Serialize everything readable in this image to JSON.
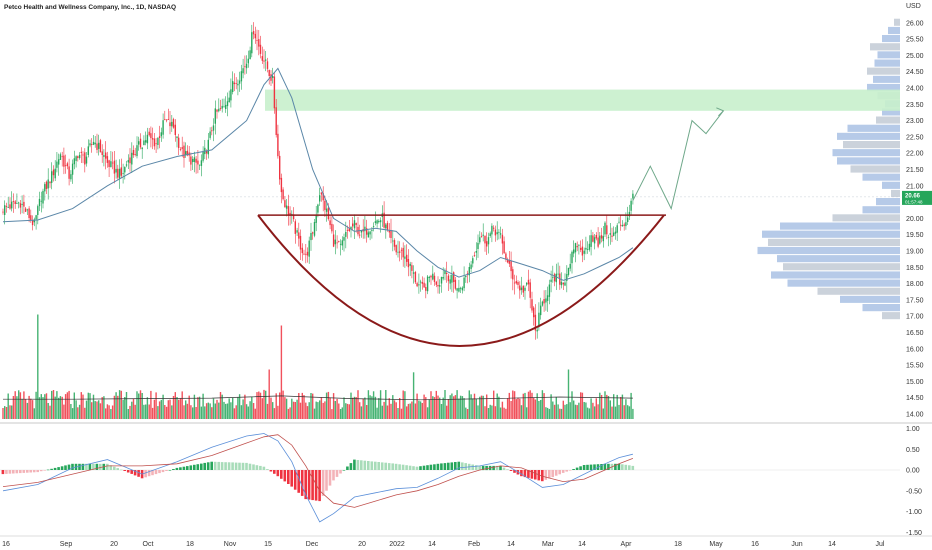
{
  "header": {
    "title": "Petco Health and Wellness Company, Inc., 1D, NASDAQ",
    "currency": "USD"
  },
  "colors": {
    "up": "#26a65b",
    "down": "#ef3340",
    "ma": "#5b87a8",
    "cup": "#8b1a1a",
    "target_zone": "#c8efcc",
    "projection": "#6fa88a",
    "macd_line": "#5b8fd9",
    "signal_line": "#c0504d",
    "vol_profile": "#9db8e0"
  },
  "chart_data": [
    {
      "type": "candlestick",
      "name": "price",
      "title": "Petco Health and Wellness Company, Inc., 1D, NASDAQ",
      "ylim": [
        13.8,
        26.3
      ],
      "y_ticks": [
        "26.00",
        "25.50",
        "25.00",
        "24.50",
        "24.00",
        "23.50",
        "23.00",
        "22.50",
        "22.00",
        "21.50",
        "21.00",
        "20.50",
        "20.00",
        "19.50",
        "19.00",
        "18.50",
        "18.00",
        "17.50",
        "17.00",
        "16.50",
        "16.00",
        "15.50",
        "15.00",
        "14.50",
        "14.00"
      ],
      "x_ticks": [
        "16",
        "Sep",
        "20",
        "Oct",
        "18",
        "Nov",
        "15",
        "Dec",
        "20",
        "2022",
        "14",
        "Feb",
        "14",
        "Mar",
        "14",
        "Apr",
        "18",
        "May",
        "16",
        "Jun",
        "14",
        "Jul"
      ],
      "last_price": "20.66",
      "last_price_sub": "01:57:48",
      "series_path": [
        [
          0,
          20.3
        ],
        [
          10,
          20.5
        ],
        [
          18,
          19.8
        ],
        [
          22,
          20.7
        ],
        [
          28,
          21.3
        ],
        [
          33,
          22.0
        ],
        [
          38,
          21.3
        ],
        [
          43,
          22.0
        ],
        [
          47,
          21.8
        ],
        [
          52,
          22.4
        ],
        [
          56,
          22.1
        ],
        [
          60,
          21.7
        ],
        [
          64,
          21.5
        ],
        [
          68,
          21.3
        ],
        [
          72,
          21.8
        ],
        [
          78,
          22.2
        ],
        [
          83,
          22.5
        ],
        [
          88,
          22.3
        ],
        [
          93,
          23.0
        ],
        [
          98,
          22.8
        ],
        [
          103,
          22.0
        ],
        [
          108,
          21.8
        ],
        [
          113,
          21.6
        ],
        [
          118,
          22.3
        ],
        [
          122,
          23.2
        ],
        [
          127,
          23.4
        ],
        [
          131,
          24.0
        ],
        [
          135,
          24.3
        ],
        [
          140,
          24.8
        ],
        [
          144,
          25.8
        ],
        [
          148,
          25.1
        ],
        [
          152,
          24.6
        ],
        [
          155,
          24.2
        ],
        [
          158,
          21.9
        ],
        [
          160,
          20.8
        ],
        [
          163,
          20.3
        ],
        [
          166,
          20.0
        ],
        [
          170,
          19.3
        ],
        [
          174,
          18.8
        ],
        [
          178,
          19.6
        ],
        [
          182,
          20.8
        ],
        [
          186,
          20.2
        ],
        [
          190,
          19.3
        ],
        [
          194,
          19.1
        ],
        [
          198,
          19.6
        ],
        [
          202,
          19.8
        ],
        [
          206,
          19.5
        ],
        [
          210,
          19.7
        ],
        [
          214,
          19.9
        ],
        [
          218,
          20.0
        ],
        [
          222,
          19.4
        ],
        [
          226,
          19.0
        ],
        [
          230,
          18.9
        ],
        [
          234,
          18.5
        ],
        [
          238,
          18.0
        ],
        [
          242,
          17.8
        ],
        [
          246,
          18.3
        ],
        [
          250,
          18.0
        ],
        [
          254,
          18.4
        ],
        [
          258,
          18.1
        ],
        [
          262,
          17.8
        ],
        [
          266,
          18.2
        ],
        [
          270,
          18.8
        ],
        [
          274,
          19.5
        ],
        [
          278,
          19.3
        ],
        [
          282,
          19.7
        ],
        [
          286,
          19.4
        ],
        [
          290,
          18.6
        ],
        [
          294,
          18.1
        ],
        [
          298,
          17.8
        ],
        [
          302,
          17.9
        ],
        [
          306,
          16.5
        ],
        [
          310,
          17.4
        ],
        [
          314,
          17.9
        ],
        [
          318,
          18.2
        ],
        [
          322,
          18.0
        ],
        [
          326,
          18.7
        ],
        [
          330,
          19.2
        ],
        [
          334,
          18.9
        ],
        [
          338,
          19.5
        ],
        [
          342,
          19.2
        ],
        [
          346,
          19.7
        ],
        [
          350,
          19.4
        ],
        [
          354,
          19.8
        ],
        [
          358,
          19.9
        ],
        [
          362,
          20.66
        ]
      ],
      "moving_average": [
        [
          0,
          19.9
        ],
        [
          20,
          19.95
        ],
        [
          40,
          20.3
        ],
        [
          60,
          21.0
        ],
        [
          80,
          21.6
        ],
        [
          100,
          21.9
        ],
        [
          120,
          22.1
        ],
        [
          140,
          23.0
        ],
        [
          150,
          24.1
        ],
        [
          158,
          24.6
        ],
        [
          166,
          23.7
        ],
        [
          178,
          21.5
        ],
        [
          190,
          20.0
        ],
        [
          202,
          19.6
        ],
        [
          214,
          19.7
        ],
        [
          226,
          19.6
        ],
        [
          238,
          19.0
        ],
        [
          250,
          18.5
        ],
        [
          262,
          18.2
        ],
        [
          274,
          18.4
        ],
        [
          286,
          18.8
        ],
        [
          298,
          18.6
        ],
        [
          310,
          18.4
        ],
        [
          322,
          18.1
        ],
        [
          334,
          18.3
        ],
        [
          346,
          18.6
        ],
        [
          354,
          18.8
        ],
        [
          362,
          19.1
        ]
      ],
      "target_zone": [
        23.3,
        23.95
      ],
      "cup_handle_rim": 20.1,
      "cup_bottom": 16.0,
      "projection": [
        [
          362,
          20.55
        ],
        [
          372,
          21.6
        ],
        [
          384,
          20.3
        ],
        [
          396,
          23.0
        ],
        [
          404,
          22.6
        ],
        [
          414,
          23.3
        ]
      ]
    },
    {
      "type": "bar",
      "name": "volume",
      "avg_line": [
        [
          0,
          0.36
        ],
        [
          40,
          0.36
        ],
        [
          80,
          0.37
        ],
        [
          120,
          0.38
        ],
        [
          160,
          0.42
        ],
        [
          200,
          0.37
        ],
        [
          240,
          0.35
        ],
        [
          280,
          0.37
        ],
        [
          320,
          0.4
        ],
        [
          362,
          0.38
        ]
      ]
    },
    {
      "type": "histogram",
      "name": "macd",
      "ylim": [
        -1.5,
        1.05
      ],
      "y_ticks": [
        "1.00",
        "0.50",
        "0.00",
        "-0.50",
        "-1.00",
        "-1.50"
      ],
      "macd_line": [
        [
          0,
          -0.5
        ],
        [
          20,
          -0.35
        ],
        [
          40,
          0.05
        ],
        [
          60,
          0.25
        ],
        [
          80,
          -0.1
        ],
        [
          100,
          0.2
        ],
        [
          120,
          0.55
        ],
        [
          140,
          0.82
        ],
        [
          150,
          0.88
        ],
        [
          158,
          0.7
        ],
        [
          166,
          0.2
        ],
        [
          174,
          -0.6
        ],
        [
          182,
          -1.25
        ],
        [
          190,
          -1.05
        ],
        [
          202,
          -0.65
        ],
        [
          214,
          -0.55
        ],
        [
          226,
          -0.45
        ],
        [
          238,
          -0.42
        ],
        [
          250,
          -0.2
        ],
        [
          262,
          0.05
        ],
        [
          274,
          0.1
        ],
        [
          286,
          0.2
        ],
        [
          298,
          -0.1
        ],
        [
          310,
          -0.42
        ],
        [
          322,
          -0.35
        ],
        [
          334,
          -0.1
        ],
        [
          346,
          0.15
        ],
        [
          354,
          0.3
        ],
        [
          362,
          0.38
        ]
      ],
      "signal_line": [
        [
          0,
          -0.4
        ],
        [
          20,
          -0.3
        ],
        [
          40,
          -0.1
        ],
        [
          60,
          0.1
        ],
        [
          80,
          0.1
        ],
        [
          100,
          0.15
        ],
        [
          120,
          0.35
        ],
        [
          140,
          0.65
        ],
        [
          150,
          0.8
        ],
        [
          158,
          0.85
        ],
        [
          166,
          0.6
        ],
        [
          174,
          0.1
        ],
        [
          182,
          -0.5
        ],
        [
          190,
          -0.8
        ],
        [
          202,
          -0.9
        ],
        [
          214,
          -0.75
        ],
        [
          226,
          -0.6
        ],
        [
          238,
          -0.5
        ],
        [
          250,
          -0.35
        ],
        [
          262,
          -0.15
        ],
        [
          274,
          0.0
        ],
        [
          286,
          0.1
        ],
        [
          298,
          0.05
        ],
        [
          310,
          -0.15
        ],
        [
          322,
          -0.28
        ],
        [
          334,
          -0.22
        ],
        [
          346,
          0.0
        ],
        [
          354,
          0.15
        ],
        [
          362,
          0.28
        ]
      ]
    },
    {
      "type": "bar",
      "name": "volume_profile",
      "levels": [
        26.0,
        25.75,
        25.5,
        25.25,
        25.0,
        24.75,
        24.5,
        24.25,
        24.0,
        23.75,
        23.5,
        23.25,
        23.0,
        22.75,
        22.5,
        22.25,
        22.0,
        21.75,
        21.5,
        21.25,
        21.0,
        20.75,
        20.5,
        20.25,
        20.0,
        19.75,
        19.5,
        19.25,
        19.0,
        18.75,
        18.5,
        18.25,
        18.0,
        17.75,
        17.5,
        17.25,
        17.0
      ],
      "values": [
        0.04,
        0.08,
        0.12,
        0.2,
        0.15,
        0.17,
        0.22,
        0.18,
        0.22,
        0.15,
        0.1,
        0.12,
        0.16,
        0.35,
        0.42,
        0.38,
        0.45,
        0.42,
        0.33,
        0.25,
        0.12,
        0.06,
        0.16,
        0.25,
        0.45,
        0.8,
        0.92,
        0.88,
        0.95,
        0.82,
        0.78,
        0.86,
        0.75,
        0.55,
        0.4,
        0.25,
        0.12
      ]
    }
  ]
}
